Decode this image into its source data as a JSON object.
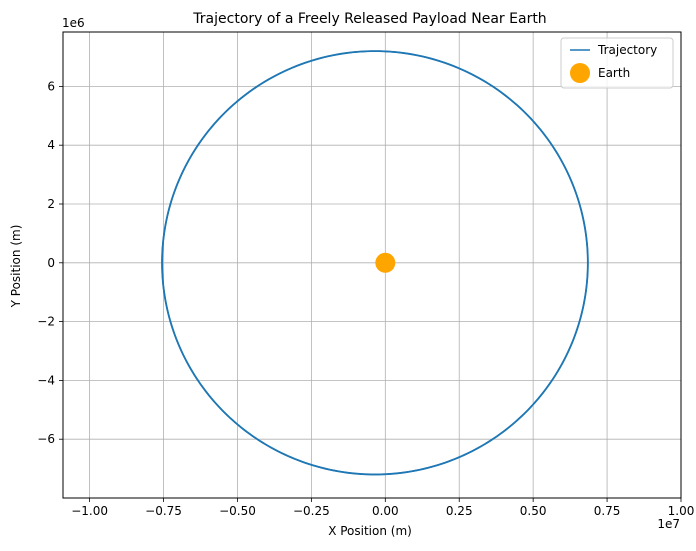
{
  "chart_data": {
    "type": "line",
    "title": "Trajectory of a Freely Released Payload Near Earth",
    "xlabel": "X Position (m)",
    "ylabel": "Y Position (m)",
    "x_offset_label": "1e7",
    "y_offset_label": "1e6",
    "xlim": [
      -10900000.0,
      10000000.0
    ],
    "ylim": [
      -8000000.0,
      7850000.0
    ],
    "xticks": [
      -10000000.0,
      -7500000.0,
      -5000000.0,
      -2500000.0,
      0,
      2500000.0,
      5000000.0,
      7500000.0,
      10000000.0
    ],
    "xtick_labels": [
      "−1.00",
      "−0.75",
      "−0.50",
      "−0.25",
      "0.00",
      "0.25",
      "0.50",
      "0.75",
      "1.00"
    ],
    "yticks": [
      -6000000.0,
      -4000000.0,
      -2000000.0,
      0,
      2000000.0,
      4000000.0,
      6000000.0
    ],
    "ytick_labels": [
      "−6",
      "−4",
      "−2",
      "0",
      "2",
      "4",
      "6"
    ],
    "grid": true,
    "legend_position": "top-right",
    "series": [
      {
        "name": "Trajectory",
        "kind": "line",
        "color": "#1f77b4",
        "shape": "ellipse",
        "center": [
          -350000.0,
          0
        ],
        "semi_axes": [
          7200000.0,
          7200000.0
        ],
        "x_range": [
          -7550000.0,
          6850000.0
        ],
        "y_range": [
          -7200000.0,
          7200000.0
        ]
      },
      {
        "name": "Earth",
        "kind": "marker",
        "color": "#ffa500",
        "x": [
          0
        ],
        "y": [
          0
        ]
      }
    ]
  }
}
